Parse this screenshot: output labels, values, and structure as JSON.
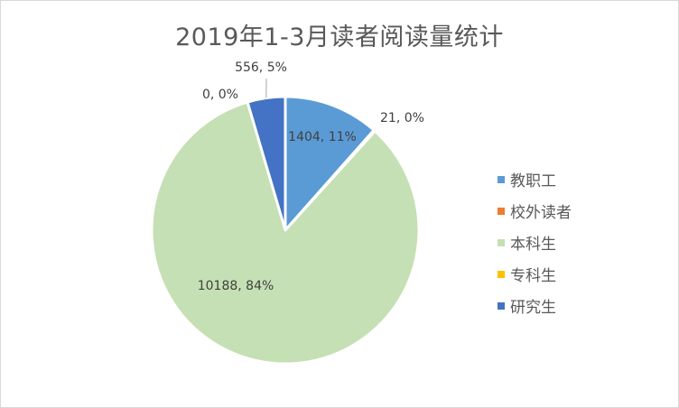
{
  "chart_data": {
    "type": "pie",
    "title": "2019年1-3月读者阅读量统计",
    "categories": [
      "教职工",
      "校外读者",
      "本科生",
      "专科生",
      "研究生"
    ],
    "values": [
      1404,
      21,
      10188,
      0,
      556
    ],
    "percent_labels": [
      "11%",
      "0%",
      "84%",
      "0%",
      "5%"
    ],
    "data_labels": [
      "1404, 11%",
      "21, 0%",
      "10188, 84%",
      "0, 0%",
      "556, 5%"
    ],
    "colors": [
      "#5b9bd5",
      "#ed7d31",
      "#c5e0b4",
      "#ffc000",
      "#4472c4"
    ],
    "start_angle": "12 o'clock",
    "direction": "clockwise",
    "legend_position": "right"
  }
}
